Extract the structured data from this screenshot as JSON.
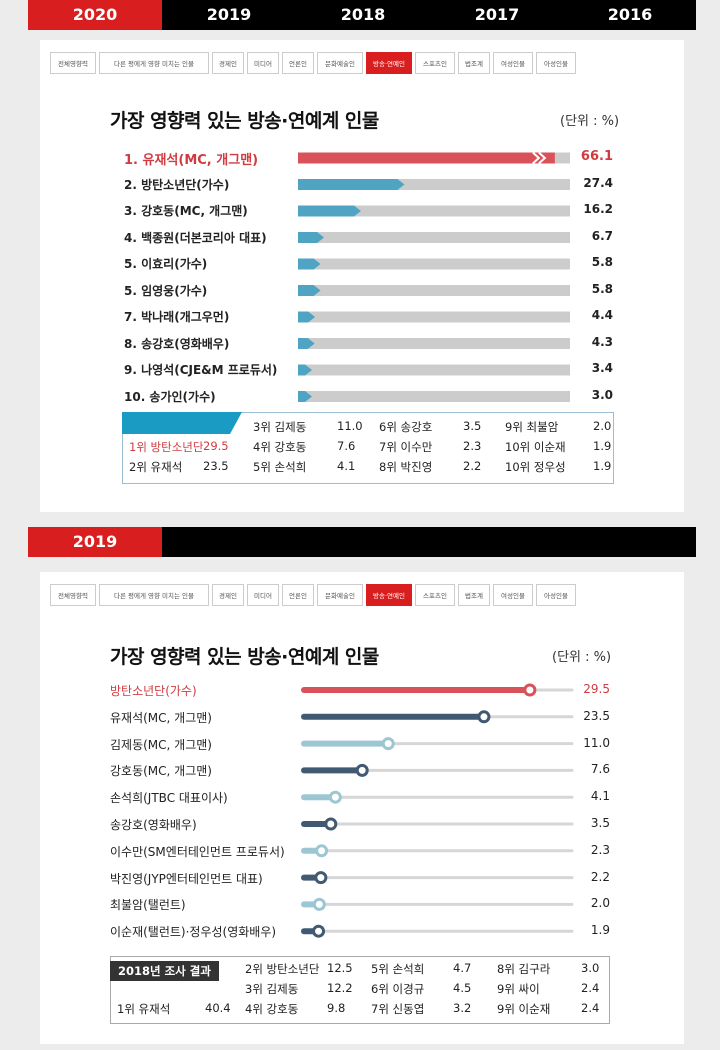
{
  "years_top": [
    "2020",
    "2019",
    "2018",
    "2017",
    "2016"
  ],
  "year_active_top": "2020",
  "year_bottom": "2019",
  "categories": [
    "전체영향력",
    "다른 평에게 영향 미치는 인물",
    "경제인",
    "미디어",
    "언론인",
    "문화예술인",
    "방송·연예인",
    "스포츠인",
    "법조계",
    "여성인물",
    "아성인물"
  ],
  "active_category": "방송·연예인",
  "colors": {
    "red": "#d81e1e",
    "bar_red": "#d9525a",
    "bar_blue": "#4fa3c3",
    "bar_gray": "#cccccc",
    "line_dark": "#415a72",
    "line_light": "#9cc6d4"
  },
  "chart_data": [
    {
      "type": "bar",
      "title": "가장 영향력 있는 방송·연예계 인물",
      "unit": "(단위 : %)",
      "categories": [
        "1. 유재석(MC, 개그맨)",
        "2. 방탄소년단(가수)",
        "3. 강호동(MC, 개그맨)",
        "4. 백종원(더본코리아 대표)",
        "5. 이효리(가수)",
        "5. 임영웅(가수)",
        "7. 박나래(개그우먼)",
        "8. 송강호(영화배우)",
        "9. 나영석(CJE&M 프로듀서)",
        "10. 송가인(가수)"
      ],
      "values": [
        66.1,
        27.4,
        16.2,
        6.7,
        5.8,
        5.8,
        4.4,
        4.3,
        3.4,
        3.0
      ],
      "value_labels": [
        "66.1",
        "27.4",
        "16.2",
        "6.7",
        "5.8",
        "5.8",
        "4.4",
        "4.3",
        "3.4",
        "3.0"
      ],
      "xlim": [
        0,
        70
      ]
    },
    {
      "type": "bar",
      "title": "가장 영향력 있는 방송·연예계 인물",
      "unit": "(단위 : %)",
      "categories": [
        "방탄소년단(가수)",
        "유재석(MC, 개그맨)",
        "김제동(MC, 개그맨)",
        "강호동(MC, 개그맨)",
        "손석희(JTBC 대표이사)",
        "송강호(영화배우)",
        "이수만(SM엔터테인먼트 프로듀서)",
        "박진영(JYP엔터테인먼트 대표)",
        "최불암(탤런트)",
        "이순재(탤런트)·정우성(영화배우)"
      ],
      "values": [
        29.5,
        23.5,
        11.0,
        7.6,
        4.1,
        3.5,
        2.3,
        2.2,
        2.0,
        1.9
      ],
      "value_labels": [
        "29.5",
        "23.5",
        "11.0",
        "7.6",
        "4.1",
        "3.5",
        "2.3",
        "2.2",
        "2.0",
        "1.9"
      ],
      "xlim": [
        0,
        35
      ]
    }
  ],
  "prev_2020": {
    "cols": [
      [
        {
          "rank": "1위 방탄소년단",
          "value": "29.5",
          "hl": true
        },
        {
          "rank": "2위 유재석",
          "value": "23.5"
        }
      ],
      [
        {
          "rank": "3위 김제동",
          "value": "11.0"
        },
        {
          "rank": "4위 강호동",
          "value": "7.6"
        },
        {
          "rank": "5위 손석희",
          "value": "4.1"
        }
      ],
      [
        {
          "rank": "6위 송강호",
          "value": "3.5"
        },
        {
          "rank": "7위 이수만",
          "value": "2.3"
        },
        {
          "rank": "8위 박진영",
          "value": "2.2"
        }
      ],
      [
        {
          "rank": "9위 최불암",
          "value": "2.0"
        },
        {
          "rank": "10위 이순재",
          "value": "1.9"
        },
        {
          "rank": "10위 정우성",
          "value": "1.9"
        }
      ]
    ]
  },
  "prev_2019": {
    "tag": "2018년 조사 결과",
    "cols": [
      [
        {
          "rank": "1위 유재석",
          "value": "40.4"
        }
      ],
      [
        {
          "rank": "2위 방탄소년단",
          "value": "12.5"
        },
        {
          "rank": "3위 김제동",
          "value": "12.2"
        },
        {
          "rank": "4위 강호동",
          "value": "9.8"
        }
      ],
      [
        {
          "rank": "5위 손석희",
          "value": "4.7"
        },
        {
          "rank": "6위 이경규",
          "value": "4.5"
        },
        {
          "rank": "7위 신동엽",
          "value": "3.2"
        }
      ],
      [
        {
          "rank": "8위 김구라",
          "value": "3.0"
        },
        {
          "rank": "9위 싸이",
          "value": "2.4"
        },
        {
          "rank": "9위 이순재",
          "value": "2.4"
        }
      ]
    ]
  }
}
